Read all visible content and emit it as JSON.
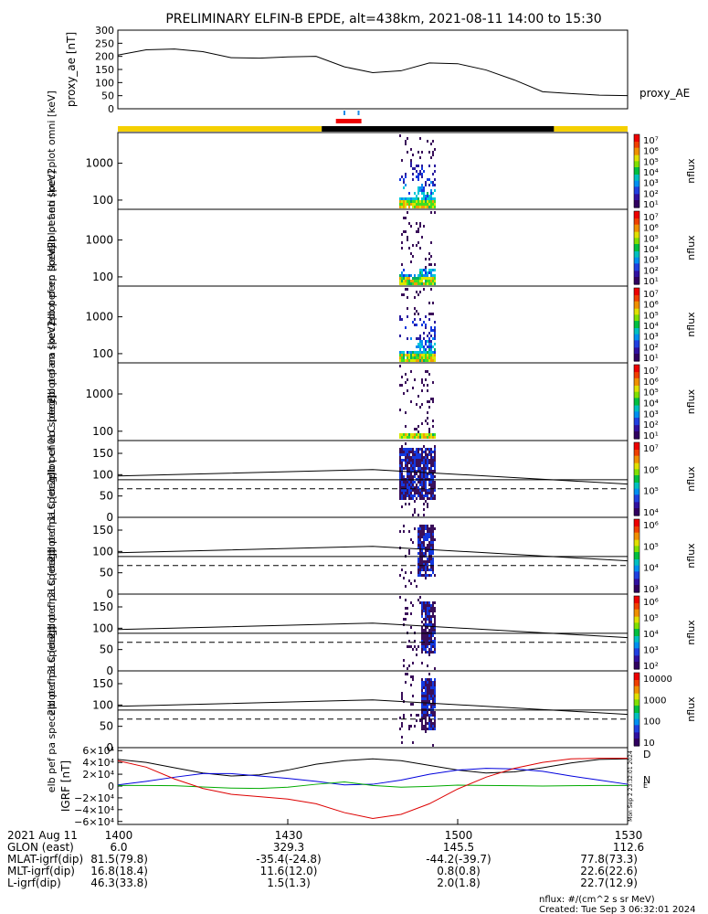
{
  "title": "PRELIMINARY ELFIN-B EPDE, alt=438km, 2021-08-11 14:00 to 15:30",
  "colors": {
    "sunlight": "#f5d000",
    "shadow": "#000000",
    "science": "#ee0000",
    "spectrum_dark": "#3a0f5a"
  },
  "chart_data": [
    {
      "type": "line",
      "name": "ae",
      "ylabel": "proxy_ae [nT]",
      "legend": "proxy_AE",
      "ylim": [
        0,
        300
      ],
      "yticks": [
        "300",
        "250",
        "200",
        "150",
        "100",
        "50",
        "0"
      ],
      "x_minutes": [
        0,
        5,
        10,
        15,
        20,
        25,
        30,
        35,
        40,
        45,
        50,
        55,
        60,
        65,
        70,
        75,
        80,
        85,
        90
      ],
      "values": [
        205,
        225,
        228,
        218,
        195,
        193,
        198,
        200,
        160,
        138,
        145,
        175,
        172,
        148,
        110,
        65,
        58,
        52,
        50
      ]
    },
    {
      "type": "bar",
      "name": "status",
      "segments": [
        {
          "from": 0,
          "to": 36,
          "state": "sunlight"
        },
        {
          "from": 36,
          "to": 77,
          "state": "shadow"
        },
        {
          "from": 77,
          "to": 90,
          "state": "sunlight"
        }
      ],
      "science_zone": [
        38.5,
        43
      ],
      "ticks": [
        40.0,
        42.5
      ]
    },
    {
      "type": "heatmap",
      "name": "omni",
      "ylabel": "elb pef en spec2plot omni [keV]",
      "ytick_labels": [
        "1000",
        "100"
      ],
      "cbar_labels": [
        "10⁷",
        "10⁶",
        "10⁵",
        "10⁴",
        "10³",
        "10²",
        "10¹"
      ],
      "cbar_unit": "nflux"
    },
    {
      "type": "heatmap",
      "name": "anti",
      "ylabel": "elb pef en spec2plot anti [keV]",
      "ytick_labels": [
        "1000",
        "100"
      ],
      "cbar_labels": [
        "10⁷",
        "10⁶",
        "10⁵",
        "10⁴",
        "10³",
        "10²",
        "10¹"
      ],
      "cbar_unit": "nflux"
    },
    {
      "type": "heatmap",
      "name": "perp",
      "ylabel": "elb pef en spec2plot perp [keV]",
      "ytick_labels": [
        "1000",
        "100"
      ],
      "cbar_labels": [
        "10⁷",
        "10⁶",
        "10⁵",
        "10⁴",
        "10³",
        "10²",
        "10¹"
      ],
      "cbar_unit": "nflux"
    },
    {
      "type": "heatmap",
      "name": "para",
      "ylabel": "elb pef en spec2plot para [keV]",
      "ytick_labels": [
        "1000",
        "100"
      ],
      "cbar_labels": [
        "10⁷",
        "10⁶",
        "10⁵",
        "10⁴",
        "10³",
        "10²",
        "10¹"
      ],
      "cbar_unit": "nflux"
    },
    {
      "type": "heatmap",
      "name": "ch0",
      "ylabel": "elb pef pa spec2plot ch0LC [deg]",
      "ylim": [
        0,
        180
      ],
      "ytick_labels": [
        "150",
        "100",
        "50",
        "0"
      ],
      "cbar_labels": [
        "10⁷",
        "10⁶",
        "10⁵",
        "10⁴"
      ],
      "cbar_unit": "nflux",
      "lc_solid": [
        [
          0,
          97
        ],
        [
          45,
          112
        ],
        [
          90,
          78
        ]
      ],
      "lc_dashed": 67
    },
    {
      "type": "heatmap",
      "name": "ch1",
      "ylabel": "elb pef pa spec2plot ch1LC [deg]",
      "ylim": [
        0,
        180
      ],
      "ytick_labels": [
        "150",
        "100",
        "50",
        "0"
      ],
      "cbar_labels": [
        "10⁶",
        "10⁵",
        "10⁴",
        "10³"
      ],
      "cbar_unit": "nflux",
      "lc_solid": [
        [
          0,
          97
        ],
        [
          45,
          112
        ],
        [
          90,
          78
        ]
      ],
      "lc_dashed": 67
    },
    {
      "type": "heatmap",
      "name": "ch2",
      "ylabel": "elb pef pa spec2plot ch2LC [deg]",
      "ylim": [
        0,
        180
      ],
      "ytick_labels": [
        "150",
        "100",
        "50",
        "0"
      ],
      "cbar_labels": [
        "10⁶",
        "10⁵",
        "10⁴",
        "10³",
        "10²"
      ],
      "cbar_unit": "nflux",
      "lc_solid": [
        [
          0,
          97
        ],
        [
          45,
          112
        ],
        [
          90,
          78
        ]
      ],
      "lc_dashed": 67
    },
    {
      "type": "heatmap",
      "name": "ch3",
      "ylabel": "elb pef pa spec2plot ch3LC [deg]",
      "ylim": [
        0,
        180
      ],
      "ytick_labels": [
        "150",
        "100",
        "50",
        "0"
      ],
      "cbar_labels": [
        "10000",
        "1000",
        "100",
        "10"
      ],
      "cbar_unit": "nflux",
      "lc_solid": [
        [
          0,
          97
        ],
        [
          45,
          112
        ],
        [
          90,
          78
        ]
      ],
      "lc_dashed": 67
    },
    {
      "type": "line",
      "name": "igrf",
      "ylabel": "IGRF [nT]",
      "ylim": [
        -65000,
        65000
      ],
      "ytick_labels": [
        "6×10⁴",
        "4×10⁴",
        "2×10⁴",
        "0",
        "−2×10⁴",
        "−4×10⁴",
        "−6×10⁴"
      ],
      "yticks": [
        60000,
        40000,
        20000,
        0,
        -20000,
        -40000,
        -60000
      ],
      "x_minutes": [
        0,
        5,
        10,
        15,
        20,
        25,
        30,
        35,
        40,
        45,
        50,
        55,
        60,
        65,
        70,
        75,
        80,
        85,
        90
      ],
      "series": [
        {
          "color": "#000000",
          "values": [
            45000,
            40000,
            31000,
            22000,
            17000,
            19000,
            27000,
            37000,
            43000,
            46000,
            43000,
            35000,
            27000,
            22000,
            24000,
            31000,
            39000,
            45000,
            46000
          ]
        },
        {
          "color": "#0000dd",
          "values": [
            2000,
            8000,
            15000,
            21000,
            21000,
            17000,
            13000,
            8000,
            2000,
            3000,
            10000,
            20000,
            27000,
            30000,
            29000,
            25000,
            17000,
            10000,
            3000
          ]
        },
        {
          "color": "#00aa00",
          "values": [
            1000,
            1000,
            500,
            -1500,
            -3500,
            -4000,
            -2000,
            3000,
            7000,
            1000,
            -2000,
            -500,
            1500,
            1000,
            500,
            0,
            500,
            1000,
            1000
          ]
        },
        {
          "color": "#dd0000",
          "values": [
            43000,
            32000,
            12000,
            -4000,
            -14000,
            -18000,
            -22000,
            -30000,
            -45000,
            -55000,
            -48000,
            -30000,
            -5000,
            15000,
            30000,
            40000,
            46000,
            47000,
            47000
          ]
        }
      ],
      "side_letters": [
        "D",
        "N",
        "E"
      ]
    }
  ],
  "xaxis": {
    "row_labels": [
      "2021 Aug 11",
      "GLON (east)",
      "MLAT-igrf(dip)",
      "MLT-igrf(dip)",
      "L-igrf(dip)"
    ],
    "columns": [
      [
        "1400",
        "6.0",
        "81.5(79.8)",
        "16.8(18.4)",
        "46.3(33.8)"
      ],
      [
        "1430",
        "329.3",
        "-35.4(-24.8)",
        "11.6(12.0)",
        "1.5(1.3)"
      ],
      [
        "1500",
        "145.5",
        "-44.2(-39.7)",
        "0.8(0.8)",
        "2.0(1.8)"
      ],
      [
        "1530",
        "112.6",
        "77.8(73.3)",
        "22.6(22.6)",
        "22.7(12.9)"
      ]
    ]
  },
  "footer": {
    "nflux": "nflux: #/(cm^2 s sr MeV)",
    "created": "Created: Tue Sep  3 06:32:01 2024",
    "side_stamp": "Mon Sep  2 23:32:01 2024"
  }
}
